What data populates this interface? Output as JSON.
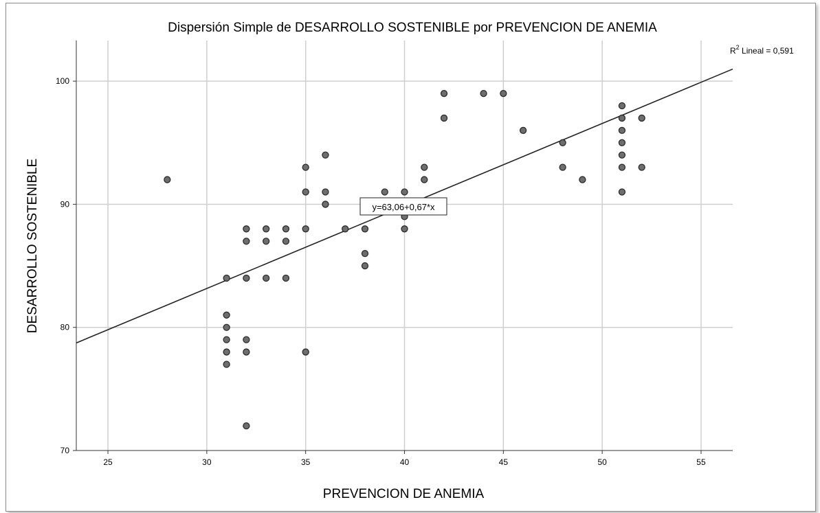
{
  "chart_data": {
    "type": "scatter",
    "title": "Dispersión Simple de DESARROLLO SOSTENIBLE por PREVENCION DE ANEMIA",
    "xlabel": "PREVENCION DE ANEMIA",
    "ylabel": "DESARROLLO SOSTENIBLE",
    "xlim": [
      23.4,
      56.6
    ],
    "ylim": [
      70,
      103.3
    ],
    "xticks": [
      25,
      30,
      35,
      40,
      45,
      50,
      55
    ],
    "yticks": [
      70,
      80,
      90,
      100
    ],
    "grid": true,
    "r2_label": {
      "base": "R",
      "sup": "2",
      "rest": " Lineal = 0,591"
    },
    "fit": {
      "intercept": 63.06,
      "slope": 0.67,
      "label": "y=63,06+0,67*x"
    },
    "points": [
      [
        28,
        92
      ],
      [
        31,
        84
      ],
      [
        31,
        81
      ],
      [
        31,
        80
      ],
      [
        31,
        79
      ],
      [
        31,
        78
      ],
      [
        31,
        77
      ],
      [
        32,
        88
      ],
      [
        32,
        87
      ],
      [
        32,
        84
      ],
      [
        32,
        79
      ],
      [
        32,
        78
      ],
      [
        32,
        72
      ],
      [
        33,
        88
      ],
      [
        33,
        87
      ],
      [
        33,
        84
      ],
      [
        34,
        88
      ],
      [
        34,
        87
      ],
      [
        34,
        84
      ],
      [
        35,
        93
      ],
      [
        35,
        91
      ],
      [
        35,
        88
      ],
      [
        35,
        78
      ],
      [
        36,
        94
      ],
      [
        36,
        91
      ],
      [
        36,
        90
      ],
      [
        37,
        88
      ],
      [
        38,
        88
      ],
      [
        38,
        86
      ],
      [
        38,
        85
      ],
      [
        39,
        91
      ],
      [
        40,
        91
      ],
      [
        40,
        89
      ],
      [
        40,
        88
      ],
      [
        41,
        93
      ],
      [
        41,
        92
      ],
      [
        42,
        99
      ],
      [
        42,
        97
      ],
      [
        44,
        99
      ],
      [
        45,
        99
      ],
      [
        46,
        96
      ],
      [
        48,
        95
      ],
      [
        48,
        93
      ],
      [
        49,
        92
      ],
      [
        51,
        98
      ],
      [
        51,
        97
      ],
      [
        51,
        96
      ],
      [
        51,
        95
      ],
      [
        51,
        94
      ],
      [
        51,
        93
      ],
      [
        51,
        91
      ],
      [
        52,
        97
      ],
      [
        52,
        93
      ]
    ]
  },
  "colors": {
    "marker_fill": "#6e6e6e",
    "marker_stroke": "#2b2b2b",
    "grid": "#cfcfcf",
    "line": "#222222"
  }
}
